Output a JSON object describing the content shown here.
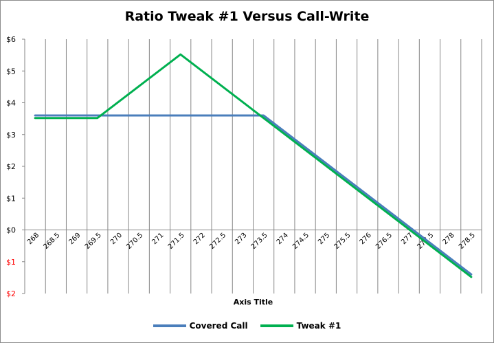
{
  "chart_data": {
    "type": "line",
    "title": "Ratio Tweak #1 Versus Call-Write",
    "xlabel": "Axis Title",
    "ylabel": "",
    "categories": [
      "268",
      "268.5",
      "269",
      "269.5",
      "270",
      "270.5",
      "271",
      "271.5",
      "272",
      "272.5",
      "273",
      "273.5",
      "274",
      "274.5",
      "275",
      "275.5",
      "276",
      "276.5",
      "277",
      "277.5",
      "278",
      "278.5"
    ],
    "ylim": [
      -2,
      6
    ],
    "yticks": [
      {
        "value": 6,
        "label": "$6",
        "color": "#000000"
      },
      {
        "value": 5,
        "label": "$5",
        "color": "#000000"
      },
      {
        "value": 4,
        "label": "$4",
        "color": "#000000"
      },
      {
        "value": 3,
        "label": "$3",
        "color": "#000000"
      },
      {
        "value": 2,
        "label": "$2",
        "color": "#000000"
      },
      {
        "value": 1,
        "label": "$1",
        "color": "#000000"
      },
      {
        "value": 0,
        "label": "$0",
        "color": "#000000"
      },
      {
        "value": -1,
        "label": "$1",
        "color": "#ff0000"
      },
      {
        "value": -2,
        "label": "$2",
        "color": "#ff0000"
      }
    ],
    "grid": {
      "vertical": true,
      "horizontal": false
    },
    "legend_position": "bottom",
    "series": [
      {
        "name": "Covered Call",
        "color": "#4a7ebb",
        "values": [
          3.6,
          3.6,
          3.6,
          3.6,
          3.6,
          3.6,
          3.6,
          3.6,
          3.6,
          3.6,
          3.6,
          3.6,
          3.1,
          2.6,
          2.1,
          1.6,
          1.1,
          0.6,
          0.1,
          -0.4,
          -0.9,
          -1.4
        ]
      },
      {
        "name": "Tweak #1",
        "color": "#00b050",
        "values": [
          3.52,
          3.52,
          3.52,
          3.52,
          4.02,
          4.52,
          5.02,
          5.52,
          5.02,
          4.52,
          4.02,
          3.52,
          3.02,
          2.52,
          2.02,
          1.52,
          1.02,
          0.52,
          0.02,
          -0.48,
          -0.98,
          -1.48
        ]
      }
    ]
  }
}
